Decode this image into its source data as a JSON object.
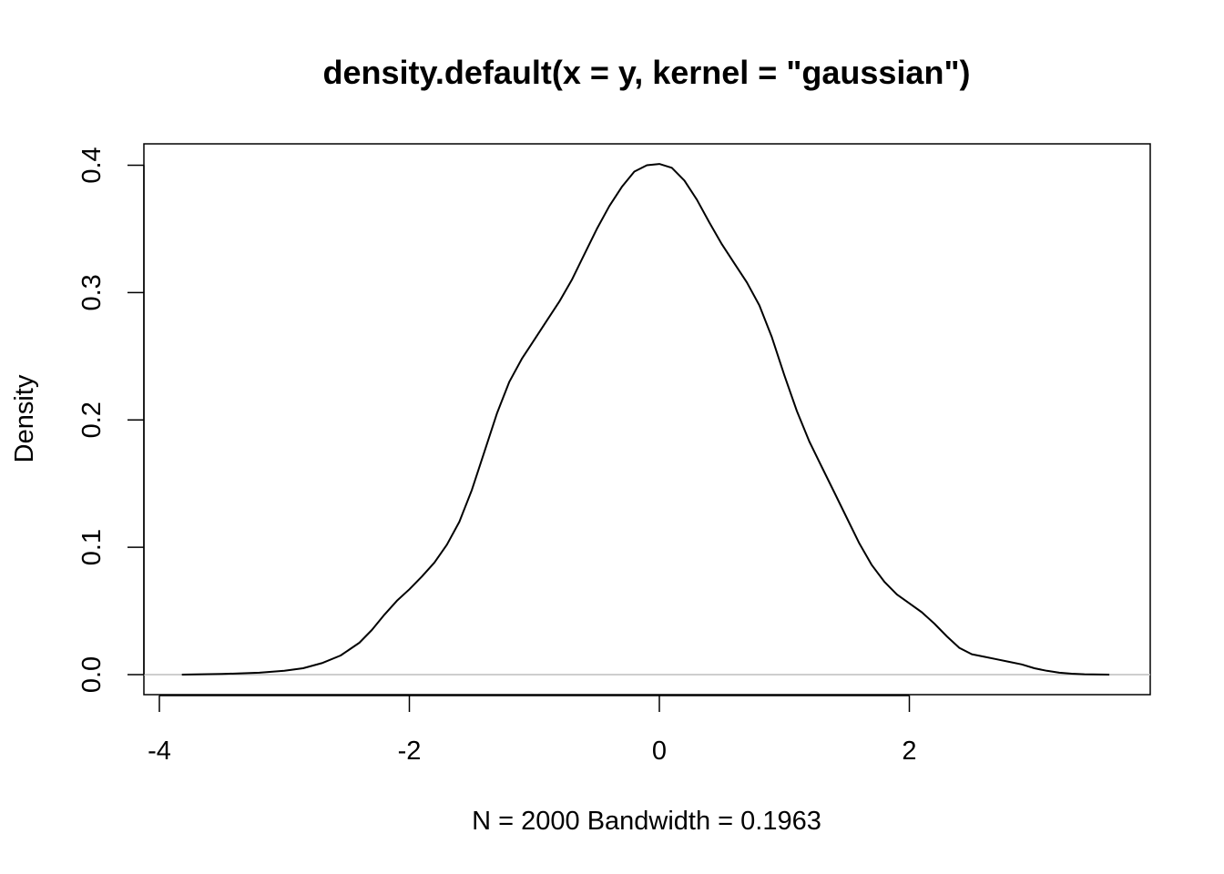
{
  "chart_data": {
    "type": "line",
    "title": "density.default(x = y, kernel = \"gaussian\")",
    "xlabel": "N = 2000   Bandwidth = 0.1963",
    "ylabel": "Density",
    "xlim": [
      -4,
      4
    ],
    "ylim": [
      0,
      0.4
    ],
    "x_ticks": [
      -4,
      -2,
      0,
      2
    ],
    "x_tick_labels": [
      "-4",
      "-2",
      "0",
      "2"
    ],
    "y_ticks": [
      0.0,
      0.1,
      0.2,
      0.3,
      0.4
    ],
    "y_tick_labels": [
      "0.0",
      "0.1",
      "0.2",
      "0.3",
      "0.4"
    ],
    "grid": false,
    "baseline_y": 0,
    "series": [
      {
        "x": [
          -3.82,
          -3.5,
          -3.2,
          -3.0,
          -2.85,
          -2.7,
          -2.55,
          -2.4,
          -2.3,
          -2.2,
          -2.1,
          -2.0,
          -1.9,
          -1.8,
          -1.7,
          -1.6,
          -1.5,
          -1.4,
          -1.3,
          -1.2,
          -1.1,
          -1.0,
          -0.9,
          -0.8,
          -0.7,
          -0.6,
          -0.5,
          -0.4,
          -0.3,
          -0.2,
          -0.1,
          0.0,
          0.1,
          0.2,
          0.3,
          0.4,
          0.5,
          0.6,
          0.7,
          0.8,
          0.9,
          1.0,
          1.1,
          1.2,
          1.3,
          1.4,
          1.5,
          1.6,
          1.7,
          1.8,
          1.9,
          2.0,
          2.1,
          2.2,
          2.3,
          2.4,
          2.5,
          2.6,
          2.7,
          2.8,
          2.9,
          3.0,
          3.1,
          3.2,
          3.3,
          3.4,
          3.6
        ],
        "y": [
          0.0,
          0.0005,
          0.0015,
          0.003,
          0.005,
          0.009,
          0.015,
          0.025,
          0.035,
          0.047,
          0.058,
          0.067,
          0.077,
          0.088,
          0.102,
          0.12,
          0.145,
          0.175,
          0.205,
          0.23,
          0.248,
          0.263,
          0.278,
          0.293,
          0.31,
          0.33,
          0.35,
          0.368,
          0.383,
          0.395,
          0.4,
          0.401,
          0.398,
          0.388,
          0.373,
          0.355,
          0.338,
          0.323,
          0.308,
          0.29,
          0.265,
          0.235,
          0.207,
          0.183,
          0.163,
          0.143,
          0.123,
          0.103,
          0.086,
          0.073,
          0.063,
          0.056,
          0.049,
          0.04,
          0.03,
          0.021,
          0.016,
          0.014,
          0.012,
          0.01,
          0.008,
          0.005,
          0.003,
          0.0015,
          0.0007,
          0.0003,
          0.0
        ]
      }
    ]
  }
}
